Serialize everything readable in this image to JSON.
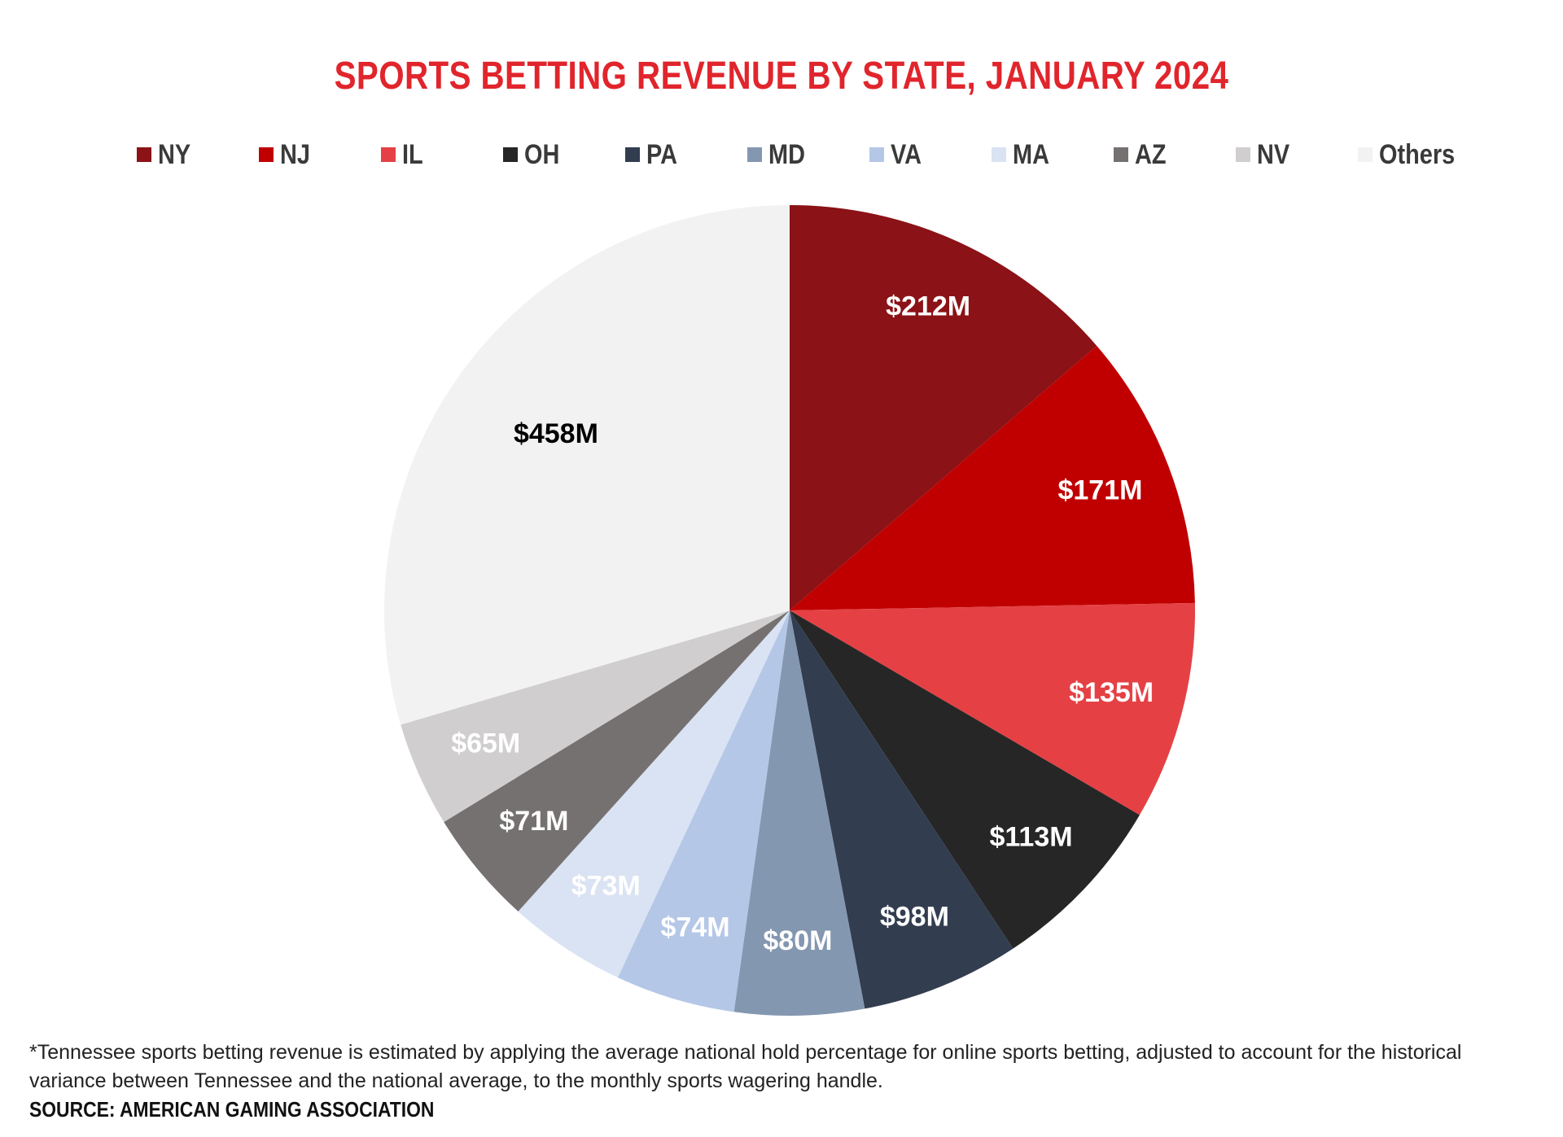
{
  "chart_data": {
    "type": "pie",
    "title": "SPORTS BETTING REVENUE BY STATE, JANUARY 2024",
    "legend_position": "top",
    "categories": [
      "NY",
      "NJ",
      "IL",
      "OH",
      "PA",
      "MD",
      "VA",
      "MA",
      "AZ",
      "NV",
      "Others"
    ],
    "values": [
      212,
      171,
      135,
      113,
      98,
      80,
      74,
      73,
      71,
      65,
      458
    ],
    "labels": [
      "$212M",
      "$171M",
      "$135M",
      "$113M",
      "$98M",
      "$80M",
      "$74M",
      "$73M",
      "$71M",
      "$65M",
      "$458M"
    ],
    "colors": [
      "#8b1216",
      "#c00000",
      "#e54145",
      "#262626",
      "#323d4f",
      "#8497b0",
      "#b4c7e7",
      "#dae3f3",
      "#767171",
      "#d0cece",
      "#f2f2f2"
    ],
    "label_colors": [
      "#ffffff",
      "#ffffff",
      "#ffffff",
      "#ffffff",
      "#ffffff",
      "#ffffff",
      "#ffffff",
      "#ffffff",
      "#ffffff",
      "#ffffff",
      "#000000"
    ]
  },
  "footnote": "*Tennessee sports betting revenue is estimated by applying the average national hold percentage for online sports betting, adjusted to account for the historical variance between Tennessee and the national average, to the monthly sports wagering handle.",
  "source": "SOURCE: AMERICAN GAMING ASSOCIATION"
}
